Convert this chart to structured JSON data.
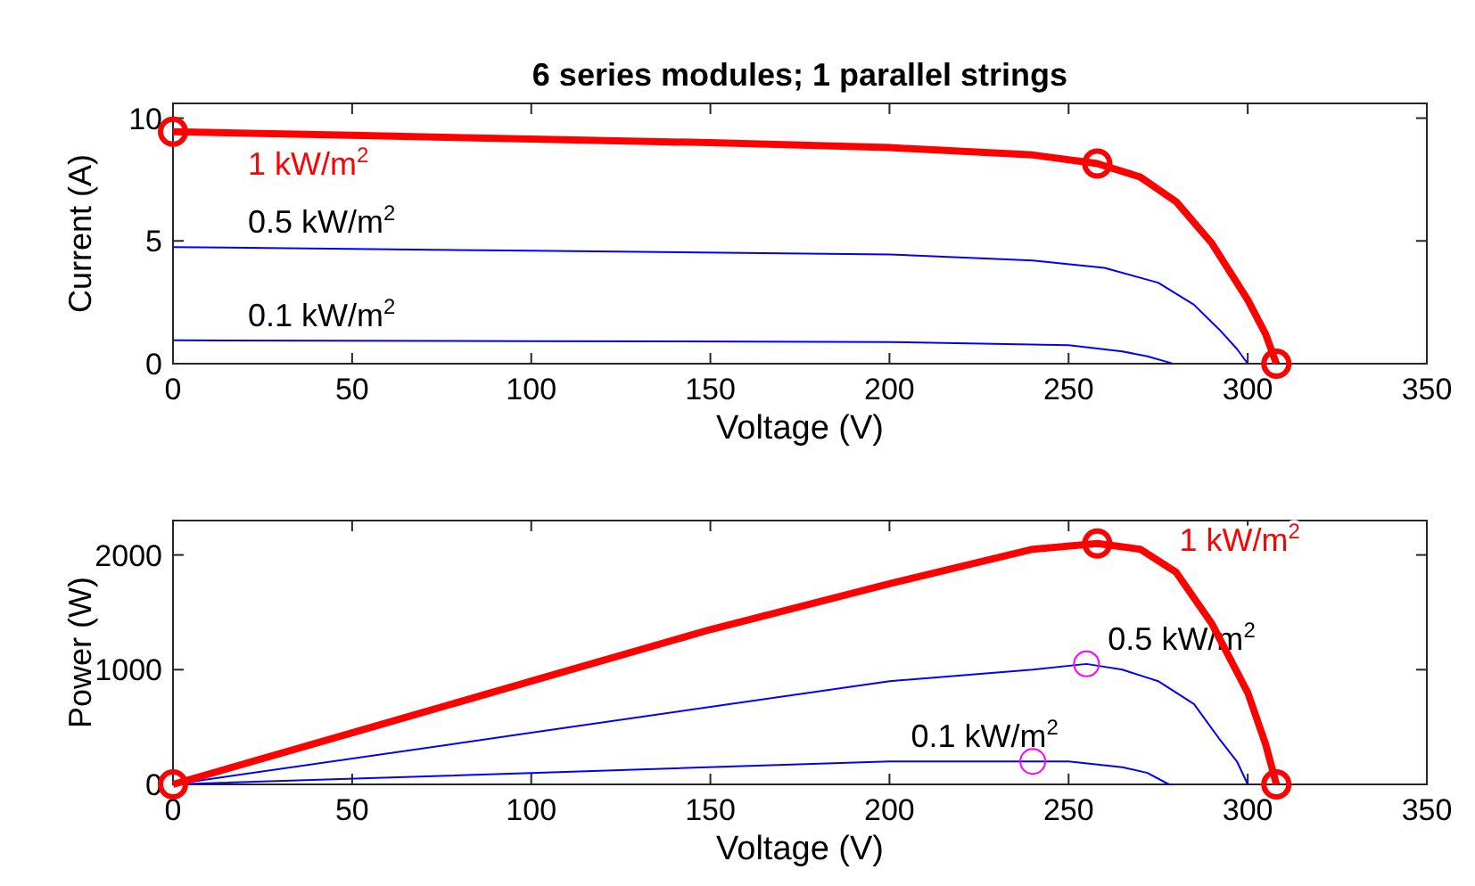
{
  "chart_data": [
    {
      "type": "line",
      "title": "6 series modules; 1 parallel strings",
      "xlabel": "Voltage (V)",
      "ylabel": "Current (A)",
      "xlim": [
        0,
        350
      ],
      "xticks": [
        0,
        50,
        100,
        150,
        200,
        250,
        300,
        350
      ],
      "ylim": [
        0,
        10.6
      ],
      "yticks": [
        0,
        5,
        10
      ],
      "grid": false,
      "line_style": "solid",
      "series": [
        {
          "name": "0.5 kW/m$^{2}$",
          "color": "#0000ff",
          "x": [
            0,
            100,
            200,
            240,
            260,
            275,
            285,
            292,
            297,
            300
          ],
          "values": [
            4.75,
            4.6,
            4.45,
            4.2,
            3.9,
            3.3,
            2.4,
            1.4,
            0.6,
            0
          ]
        },
        {
          "name": "0.1 kW/m$^{2}$",
          "color": "#0000ff",
          "x": [
            0,
            100,
            200,
            250,
            265,
            272,
            278,
            279
          ],
          "values": [
            0.95,
            0.92,
            0.88,
            0.75,
            0.5,
            0.3,
            0.05,
            0
          ]
        },
        {
          "name": "1 kW/m$^{2}$",
          "color": "#ff0000",
          "x": [
            0,
            50,
            100,
            150,
            200,
            240,
            258,
            270,
            280,
            290,
            300,
            305,
            308
          ],
          "values": [
            9.45,
            9.3,
            9.15,
            9.0,
            8.8,
            8.5,
            8.15,
            7.6,
            6.6,
            4.9,
            2.6,
            1.2,
            0
          ]
        },
        {
          "type": "scatter",
          "color": "#ff0000",
          "marker": "circle",
          "x": [
            0,
            258,
            308
          ],
          "values": [
            9.45,
            8.15,
            0
          ]
        }
      ]
    },
    {
      "type": "line",
      "xlabel": "Voltage (V)",
      "ylabel": "Power (W)",
      "xlim": [
        0,
        350
      ],
      "xticks": [
        0,
        50,
        100,
        150,
        200,
        250,
        300,
        350
      ],
      "ylim": [
        0,
        2300
      ],
      "yticks": [
        0,
        1000,
        2000
      ],
      "grid": false,
      "line_style": "solid",
      "series": [
        {
          "name": "0.5 kW/m$^{2}$",
          "color": "#0000ff",
          "x": [
            0,
            100,
            200,
            240,
            255,
            265,
            275,
            285,
            292,
            297,
            300
          ],
          "values": [
            0,
            450,
            900,
            1000,
            1050,
            1000,
            900,
            700,
            400,
            200,
            0
          ]
        },
        {
          "name": "0.1 kW/m$^{2}$",
          "color": "#0000ff",
          "x": [
            0,
            100,
            200,
            240,
            250,
            265,
            272,
            278,
            279
          ],
          "values": [
            0,
            100,
            200,
            200,
            200,
            150,
            100,
            0,
            0
          ]
        },
        {
          "name": "1 kW/m$^{2}$",
          "color": "#ff0000",
          "x": [
            0,
            50,
            100,
            150,
            200,
            240,
            258,
            270,
            280,
            290,
            300,
            305,
            308
          ],
          "values": [
            0,
            450,
            900,
            1350,
            1750,
            2050,
            2100,
            2050,
            1850,
            1400,
            800,
            350,
            0
          ]
        },
        {
          "type": "scatter",
          "color": "#ff00ff",
          "marker": "circle",
          "x": [
            255,
            240
          ],
          "values": [
            1050,
            200
          ]
        },
        {
          "type": "scatter",
          "color": "#ff0000",
          "marker": "circle",
          "x": [
            0,
            258,
            308
          ],
          "values": [
            0,
            2100,
            0
          ]
        }
      ]
    }
  ]
}
